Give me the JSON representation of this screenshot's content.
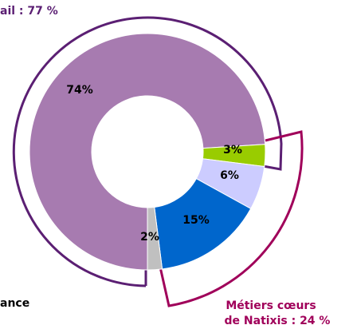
{
  "chart_data": {
    "type": "pie",
    "categories": [
      null,
      null,
      null,
      null,
      null
    ],
    "values": [
      74,
      3,
      6,
      15,
      2
    ],
    "value_labels": [
      "74%",
      "3%",
      "6%",
      "15%",
      "2%"
    ],
    "colors": [
      "#a77bb0",
      "#99cc00",
      "#ccccff",
      "#0066cc",
      "#c0c0c0"
    ],
    "annotations": [
      "ail : 77 %",
      "ance",
      "Métiers cœurs",
      "de Natixis : 24 %"
    ]
  }
}
